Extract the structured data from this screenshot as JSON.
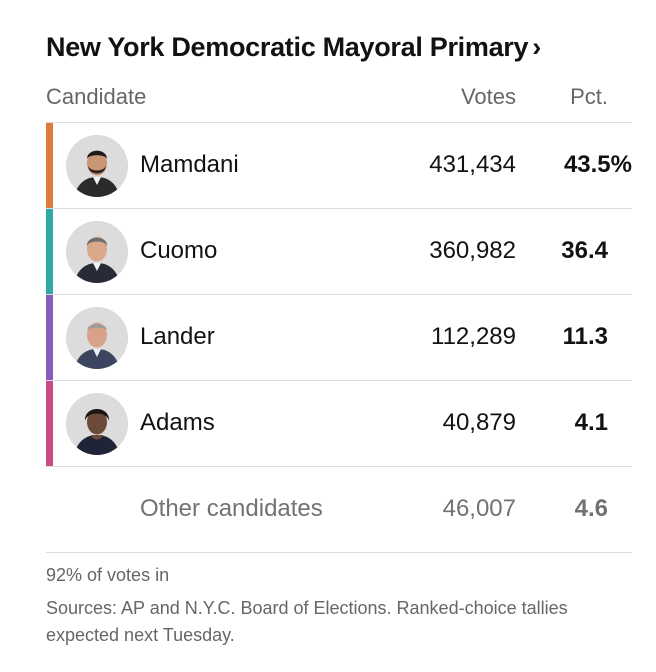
{
  "title": "New York Democratic Mayoral Primary",
  "title_chevron": "›",
  "columns": {
    "candidate": "Candidate",
    "votes": "Votes",
    "pct": "Pct."
  },
  "candidates": [
    {
      "name": "Mamdani",
      "votes": "431,434",
      "pct": "43.5%",
      "color": "#e07a3f"
    },
    {
      "name": "Cuomo",
      "votes": "360,982",
      "pct": "36.4",
      "color": "#2fa8a8"
    },
    {
      "name": "Lander",
      "votes": "112,289",
      "pct": "11.3",
      "color": "#8a5bbf"
    },
    {
      "name": "Adams",
      "votes": "40,879",
      "pct": "4.1",
      "color": "#c94b86"
    }
  ],
  "other": {
    "name": "Other candidates",
    "votes": "46,007",
    "pct": "4.6"
  },
  "footer": {
    "coverage": "92% of votes in",
    "sources": "Sources: AP and N.Y.C. Board of Elections. Ranked-choice tallies expected next Tuesday."
  }
}
